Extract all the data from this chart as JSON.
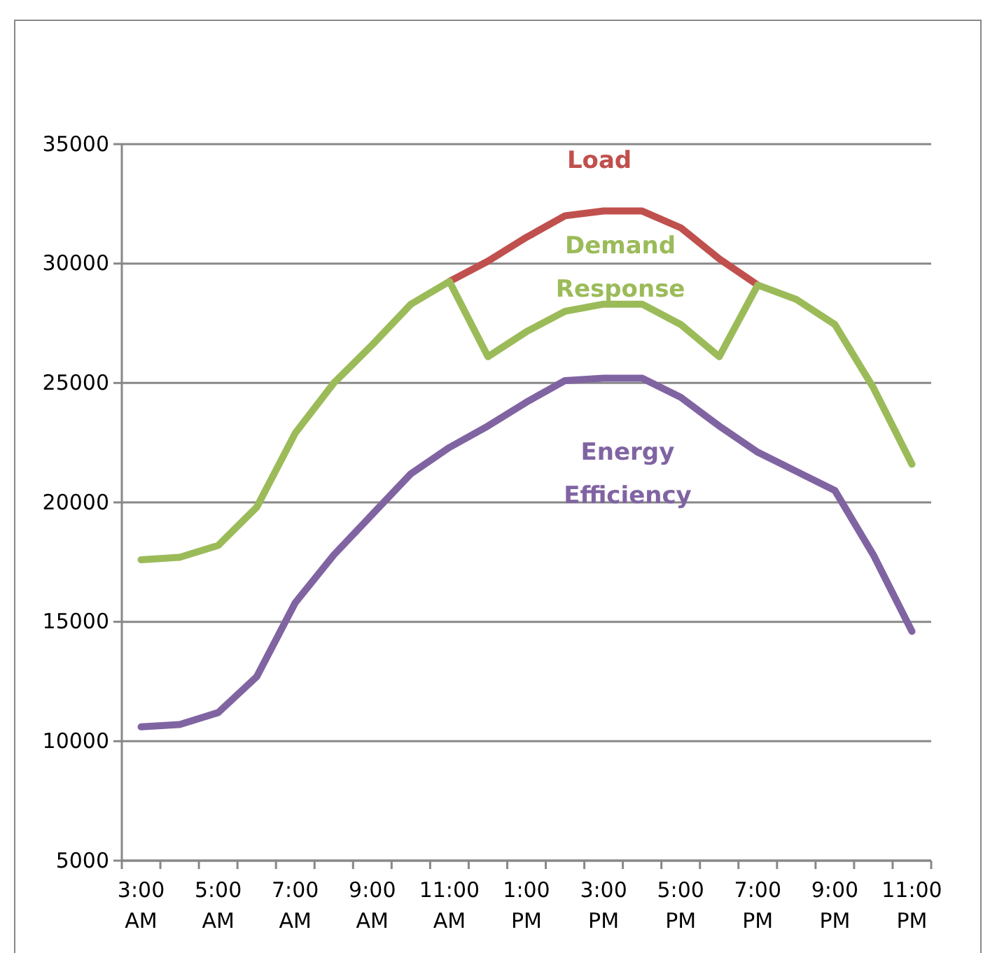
{
  "chart_data": {
    "type": "line",
    "categories": [
      "3:00 AM",
      null,
      "5:00 AM",
      null,
      "7:00 AM",
      null,
      "9:00 AM",
      null,
      "11:00 AM",
      null,
      "1:00 PM",
      null,
      "3:00 PM",
      null,
      "5:00 PM",
      null,
      "7:00 PM",
      null,
      "9:00 PM",
      null,
      "11:00 PM"
    ],
    "series": [
      {
        "name": "Load",
        "color": "#c0504d",
        "values": [
          null,
          null,
          null,
          null,
          null,
          null,
          null,
          null,
          29250,
          30100,
          31100,
          32000,
          32200,
          32200,
          31500,
          30200,
          29100,
          null,
          null,
          null,
          null
        ]
      },
      {
        "name": "Demand Response",
        "color": "#9bbb59",
        "values": [
          17600,
          17700,
          18200,
          19800,
          22900,
          25000,
          26600,
          28300,
          29250,
          26100,
          27150,
          28000,
          28300,
          28300,
          27450,
          26100,
          29100,
          28500,
          27450,
          24800,
          21600
        ]
      },
      {
        "name": "Energy Efficiency",
        "color": "#8064a2",
        "values": [
          10600,
          10700,
          11200,
          12700,
          15800,
          17800,
          19500,
          21200,
          22300,
          23200,
          24200,
          25100,
          25200,
          25200,
          24400,
          23200,
          22100,
          21300,
          20500,
          17800,
          14600
        ]
      }
    ],
    "ylim": [
      5000,
      35000
    ],
    "yticks": [
      5000,
      10000,
      15000,
      20000,
      25000,
      30000,
      35000
    ],
    "grid": "y",
    "marker": "none",
    "line_style": "solid"
  }
}
